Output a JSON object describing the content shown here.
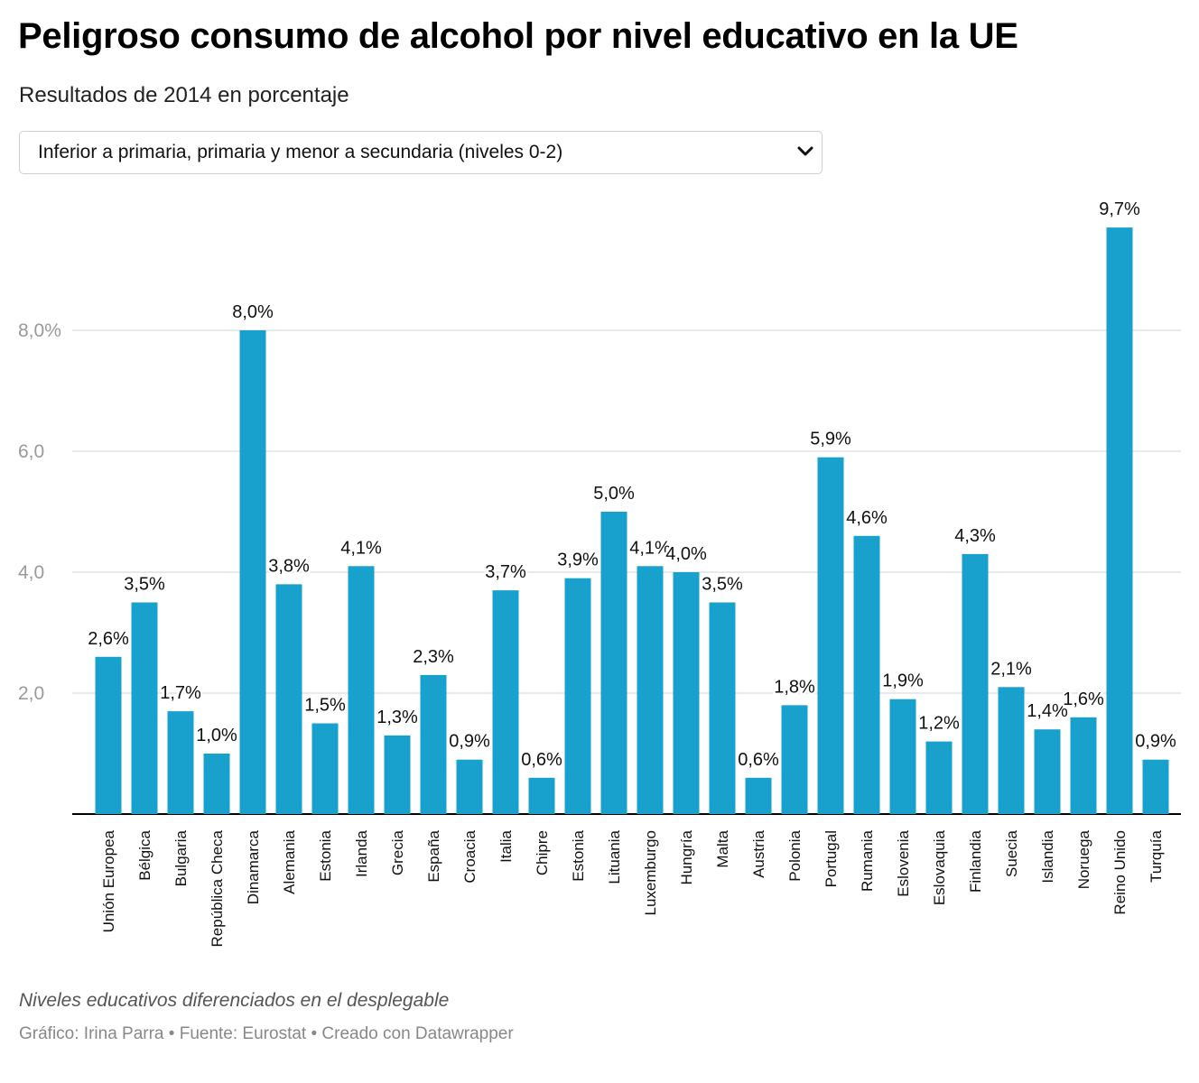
{
  "title": "Peligroso consumo de alcohol por nivel educativo en la UE",
  "subtitle": "Resultados de 2014 en porcentaje",
  "dropdown": {
    "selected": "Inferior a primaria, primaria y menor a secundaria (niveles 0-2)",
    "icon": "chevron-down-icon"
  },
  "note": "Niveles educativos diferenciados en el desplegable",
  "footer": {
    "credit": "Gráfico: Irina Parra",
    "separator": " • ",
    "source": "Fuente: Eurostat",
    "tool": "Creado con Datawrapper"
  },
  "colors": {
    "bar": "#18a1cd",
    "grid": "#e2e2e2",
    "axis": "#000000",
    "tick_label": "#9a9a9a"
  },
  "chart_data": {
    "type": "bar",
    "categories": [
      "Unión Europea",
      "Bélgica",
      "Bulgaria",
      "República Checa",
      "Dinamarca",
      "Alemania",
      "Estonia",
      "Irlanda",
      "Grecia",
      "España",
      "Croacia",
      "Italia",
      "Chipre",
      "Estonia",
      "Lituania",
      "Luxemburgo",
      "Hungría",
      "Malta",
      "Austria",
      "Polonia",
      "Portugal",
      "Rumania",
      "Eslovenia",
      "Eslovaquia",
      "Finlandia",
      "Suecia",
      "Islandia",
      "Noruega",
      "Reino Unido",
      "Turquía"
    ],
    "values": [
      2.6,
      3.5,
      1.7,
      1.0,
      8.0,
      3.8,
      1.5,
      4.1,
      1.3,
      2.3,
      0.9,
      3.7,
      0.6,
      3.9,
      5.0,
      4.1,
      4.0,
      3.5,
      0.6,
      1.8,
      5.9,
      4.6,
      1.9,
      1.2,
      4.3,
      2.1,
      1.4,
      1.6,
      9.7,
      0.9
    ],
    "value_labels": [
      "2,6%",
      "3,5%",
      "1,7%",
      "1,0%",
      "8,0%",
      "3,8%",
      "1,5%",
      "4,1%",
      "1,3%",
      "2,3%",
      "0,9%",
      "3,7%",
      "0,6%",
      "3,9%",
      "5,0%",
      "4,1%",
      "4,0%",
      "3,5%",
      "0,6%",
      "1,8%",
      "5,9%",
      "4,6%",
      "1,9%",
      "1,2%",
      "4,3%",
      "2,1%",
      "1,4%",
      "1,6%",
      "9,7%",
      "0,9%"
    ],
    "yticks": [
      2.0,
      4.0,
      6.0,
      8.0
    ],
    "ytick_labels": [
      "2,0",
      "4,0",
      "6,0",
      "8,0%"
    ],
    "ylim": [
      0,
      10
    ],
    "grid": true
  }
}
